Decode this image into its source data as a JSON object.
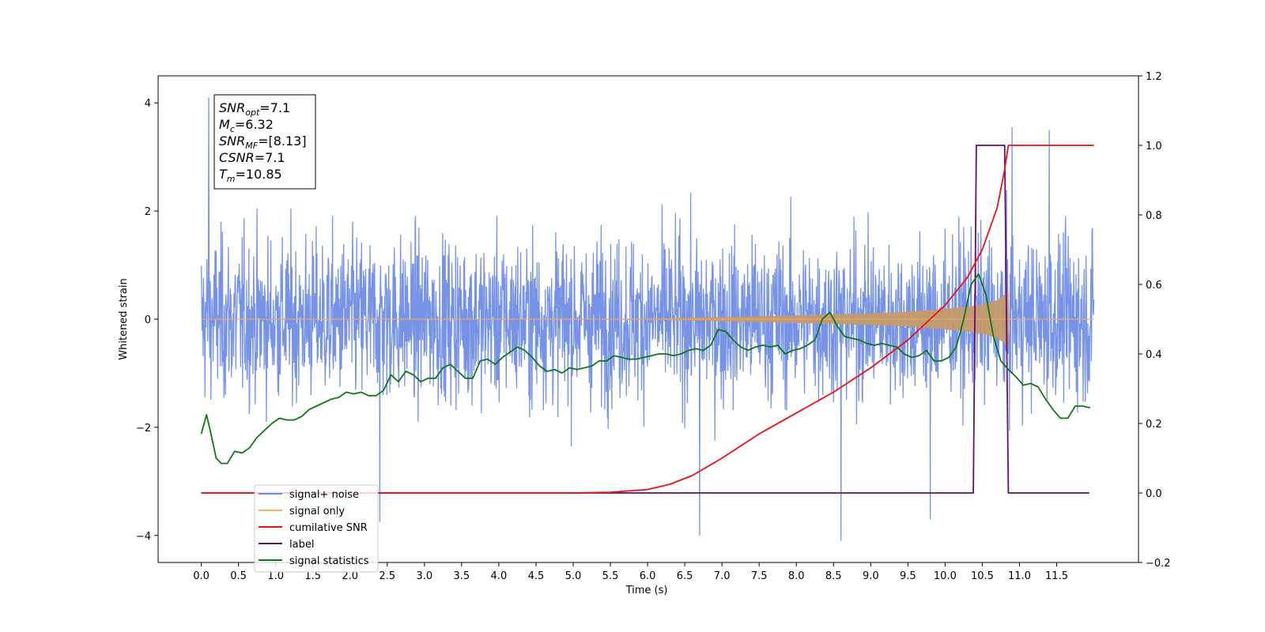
{
  "chart_data": {
    "type": "line",
    "xlabel": "Time (s)",
    "ylabel": "Whitened strain",
    "x_ticks": [
      "0.0",
      "0.5",
      "1.0",
      "1.5",
      "2.0",
      "2.5",
      "3.0",
      "3.5",
      "4.0",
      "4.5",
      "5.0",
      "5.5",
      "6.0",
      "6.5",
      "7.0",
      "7.5",
      "8.0",
      "8.5",
      "9.0",
      "9.5",
      "10.0",
      "10.5",
      "11.0",
      "11.5"
    ],
    "y_ticks_left": [
      "4",
      "2",
      "0",
      "−2",
      "−4"
    ],
    "y_ticks_right": [
      "1.2",
      "1.0",
      "0.8",
      "0.6",
      "0.4",
      "0.2",
      "0.0",
      "−0.2"
    ],
    "xlim": [
      -0.58,
      12.6
    ],
    "ylim_left": [
      -4.5,
      4.5
    ],
    "ylim_right": [
      -0.2,
      1.2
    ],
    "grid": false,
    "legend_position": "lower-left",
    "annotation_lines": [
      {
        "name": "SNR",
        "sub": "opt",
        "value": "=7.1"
      },
      {
        "name": "M",
        "sub": "c",
        "value": "=6.32"
      },
      {
        "name": "SNR",
        "sub": "MF",
        "value": "=[8.13]"
      },
      {
        "name": "CSNR",
        "sub": "",
        "value": "=7.1"
      },
      {
        "name": "T",
        "sub": "m",
        "value": "=10.85"
      }
    ],
    "legend": [
      {
        "label": "signal+ noise",
        "color": "#6f8de6"
      },
      {
        "label": "signal only",
        "color": "#f5b555"
      },
      {
        "label": "cumilative SNR",
        "color": "#ee1111"
      },
      {
        "label": "label",
        "color": "#6a0d6a"
      },
      {
        "label": "signal statistics",
        "color": "#117711"
      }
    ],
    "series": [
      {
        "name": "signal+ noise",
        "axis": "left",
        "color": "#6f8de6",
        "x_range": [
          0.0,
          12.0
        ],
        "band_typical": [
          -2.3,
          2.8
        ],
        "extremes": [
          {
            "x": 0.1,
            "y": 4.1
          },
          {
            "x": 10.9,
            "y": 3.55
          },
          {
            "x": 11.4,
            "y": 3.5
          },
          {
            "x": 6.7,
            "y": -4.0
          },
          {
            "x": 8.6,
            "y": -4.1
          },
          {
            "x": 2.4,
            "y": -3.75
          },
          {
            "x": 9.8,
            "y": -3.7
          }
        ]
      },
      {
        "name": "signal only",
        "axis": "left",
        "color": "#f5b555",
        "envelope": [
          [
            0.0,
            0.0
          ],
          [
            6.0,
            0.01
          ],
          [
            7.0,
            0.04
          ],
          [
            8.0,
            0.07
          ],
          [
            9.0,
            0.11
          ],
          [
            9.5,
            0.14
          ],
          [
            10.0,
            0.19
          ],
          [
            10.3,
            0.23
          ],
          [
            10.5,
            0.27
          ],
          [
            10.7,
            0.35
          ],
          [
            10.8,
            0.45
          ],
          [
            10.85,
            0.55
          ],
          [
            10.86,
            0.0
          ],
          [
            12.0,
            0.0
          ]
        ]
      },
      {
        "name": "cumilative SNR",
        "axis": "right",
        "color": "#ee1111",
        "x": [
          0.0,
          5.0,
          5.5,
          6.0,
          6.3,
          6.6,
          7.0,
          7.5,
          8.0,
          8.5,
          9.0,
          9.5,
          10.0,
          10.3,
          10.5,
          10.7,
          10.8,
          10.85,
          12.0
        ],
        "y": [
          0.0,
          0.0,
          0.002,
          0.01,
          0.025,
          0.05,
          0.1,
          0.17,
          0.23,
          0.29,
          0.36,
          0.44,
          0.54,
          0.62,
          0.7,
          0.82,
          0.93,
          1.0,
          1.0
        ]
      },
      {
        "name": "label",
        "axis": "right",
        "color": "#6a0d6a",
        "x": [
          0.0,
          10.38,
          10.42,
          10.8,
          10.85,
          11.94
        ],
        "y": [
          0.0,
          0.0,
          1.0,
          1.0,
          0.0,
          0.0
        ]
      },
      {
        "name": "signal statistics",
        "axis": "right",
        "color": "#117711",
        "x": [
          0.0,
          0.07,
          0.12,
          0.2,
          0.27,
          0.35,
          0.45,
          0.55,
          0.65,
          0.75,
          0.85,
          0.95,
          1.05,
          1.15,
          1.25,
          1.35,
          1.45,
          1.55,
          1.65,
          1.75,
          1.85,
          1.95,
          2.05,
          2.15,
          2.25,
          2.35,
          2.45,
          2.55,
          2.65,
          2.75,
          2.85,
          2.95,
          3.05,
          3.15,
          3.25,
          3.35,
          3.45,
          3.55,
          3.65,
          3.75,
          3.85,
          3.95,
          4.05,
          4.15,
          4.25,
          4.35,
          4.45,
          4.55,
          4.65,
          4.75,
          4.85,
          4.95,
          5.05,
          5.15,
          5.25,
          5.35,
          5.45,
          5.55,
          5.65,
          5.75,
          5.85,
          5.95,
          6.05,
          6.15,
          6.25,
          6.35,
          6.45,
          6.55,
          6.65,
          6.75,
          6.85,
          6.95,
          7.05,
          7.15,
          7.25,
          7.35,
          7.45,
          7.55,
          7.65,
          7.75,
          7.85,
          7.95,
          8.05,
          8.15,
          8.25,
          8.35,
          8.45,
          8.55,
          8.65,
          8.75,
          8.85,
          8.95,
          9.05,
          9.15,
          9.25,
          9.35,
          9.45,
          9.55,
          9.65,
          9.75,
          9.85,
          9.95,
          10.05,
          10.15,
          10.25,
          10.35,
          10.45,
          10.55,
          10.65,
          10.75,
          10.85,
          10.95,
          11.05,
          11.15,
          11.25,
          11.35,
          11.45,
          11.55,
          11.65,
          11.75,
          11.85,
          11.95
        ],
        "y": [
          0.17,
          0.225,
          0.18,
          0.1,
          0.085,
          0.085,
          0.12,
          0.115,
          0.13,
          0.16,
          0.18,
          0.2,
          0.215,
          0.21,
          0.21,
          0.22,
          0.24,
          0.25,
          0.26,
          0.27,
          0.275,
          0.29,
          0.285,
          0.29,
          0.28,
          0.28,
          0.295,
          0.34,
          0.32,
          0.35,
          0.34,
          0.32,
          0.33,
          0.33,
          0.36,
          0.37,
          0.35,
          0.33,
          0.33,
          0.38,
          0.385,
          0.37,
          0.39,
          0.405,
          0.42,
          0.41,
          0.39,
          0.365,
          0.35,
          0.355,
          0.345,
          0.36,
          0.355,
          0.36,
          0.365,
          0.38,
          0.38,
          0.395,
          0.39,
          0.385,
          0.385,
          0.39,
          0.395,
          0.4,
          0.4,
          0.395,
          0.4,
          0.41,
          0.415,
          0.41,
          0.425,
          0.47,
          0.465,
          0.44,
          0.42,
          0.41,
          0.42,
          0.425,
          0.42,
          0.425,
          0.4,
          0.41,
          0.415,
          0.425,
          0.44,
          0.5,
          0.52,
          0.48,
          0.45,
          0.445,
          0.44,
          0.43,
          0.425,
          0.43,
          0.425,
          0.42,
          0.4,
          0.39,
          0.395,
          0.41,
          0.38,
          0.38,
          0.39,
          0.42,
          0.5,
          0.6,
          0.63,
          0.57,
          0.45,
          0.38,
          0.355,
          0.335,
          0.31,
          0.315,
          0.305,
          0.27,
          0.24,
          0.215,
          0.215,
          0.25,
          0.25,
          0.245
        ]
      }
    ]
  }
}
